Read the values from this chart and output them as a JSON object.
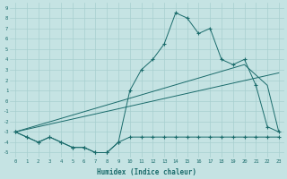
{
  "title": "",
  "xlabel": "Humidex (Indice chaleur)",
  "xlim": [
    -0.5,
    23.5
  ],
  "ylim": [
    -5.5,
    9.5
  ],
  "xticks": [
    0,
    1,
    2,
    3,
    4,
    5,
    6,
    7,
    8,
    9,
    10,
    11,
    12,
    13,
    14,
    15,
    16,
    17,
    18,
    19,
    20,
    21,
    22,
    23
  ],
  "yticks": [
    -5,
    -4,
    -3,
    -2,
    -1,
    0,
    1,
    2,
    3,
    4,
    5,
    6,
    7,
    8,
    9
  ],
  "background_color": "#c5e3e3",
  "grid_color": "#a8cfcf",
  "line_color": "#1a6b6b",
  "curve1_x": [
    0,
    1,
    2,
    3,
    4,
    5,
    6,
    7,
    8,
    9,
    10,
    11,
    12,
    13,
    14,
    15,
    16,
    17,
    18,
    19,
    20,
    21,
    22,
    23
  ],
  "curve1_y": [
    -3,
    -3.5,
    -4,
    -3.5,
    -4,
    -4.5,
    -4.5,
    -5,
    -5,
    -4,
    -3.5,
    -3.5,
    -3.5,
    -3.5,
    -3.5,
    -3.5,
    -3.5,
    -3.5,
    -3.5,
    -3.5,
    -3.5,
    -3.5,
    -3.5,
    -3.5
  ],
  "curve2_x": [
    0,
    1,
    2,
    3,
    4,
    5,
    6,
    7,
    8,
    9,
    10,
    11,
    12,
    13,
    14,
    15,
    16,
    17,
    18,
    19,
    20,
    21,
    22,
    23
  ],
  "curve2_y": [
    -3,
    -3.5,
    -4,
    -3.5,
    -4,
    -4.5,
    -4.5,
    -5,
    -5,
    -4,
    1,
    3,
    4,
    5.5,
    8.5,
    8,
    6.5,
    7,
    4,
    3.5,
    4,
    1.5,
    -2.5,
    -3
  ],
  "line3_x": [
    0,
    23
  ],
  "line3_y": [
    -3,
    2.7
  ],
  "line4_x": [
    0,
    20,
    21,
    22,
    23
  ],
  "line4_y": [
    -3,
    3.5,
    2.5,
    1.5,
    -3
  ],
  "figsize": [
    3.2,
    2.0
  ],
  "dpi": 100
}
